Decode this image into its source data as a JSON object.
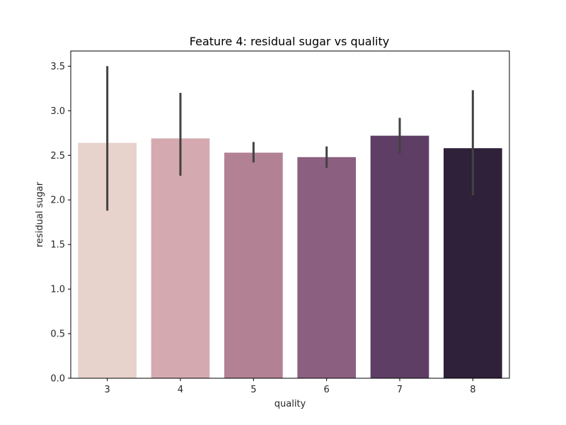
{
  "chart_data": {
    "type": "bar",
    "title": "Feature 4: residual sugar vs quality",
    "xlabel": "quality",
    "ylabel": "residual sugar",
    "categories": [
      "3",
      "4",
      "5",
      "6",
      "7",
      "8"
    ],
    "values": [
      2.64,
      2.69,
      2.53,
      2.48,
      2.72,
      2.58
    ],
    "error_low": [
      1.88,
      2.27,
      2.42,
      2.36,
      2.52,
      2.05
    ],
    "error_high": [
      3.5,
      3.2,
      2.65,
      2.6,
      2.92,
      3.23
    ],
    "colors": [
      "#e8d2cc",
      "#d4aab0",
      "#b28194",
      "#8b5f80",
      "#5e3e64",
      "#2e2139"
    ],
    "error_color": "#424242",
    "ylim": [
      0,
      3.67
    ],
    "yticks": [
      "0.0",
      "0.5",
      "1.0",
      "1.5",
      "2.0",
      "2.5",
      "3.0",
      "3.5"
    ],
    "grid": false,
    "legend": "none"
  }
}
